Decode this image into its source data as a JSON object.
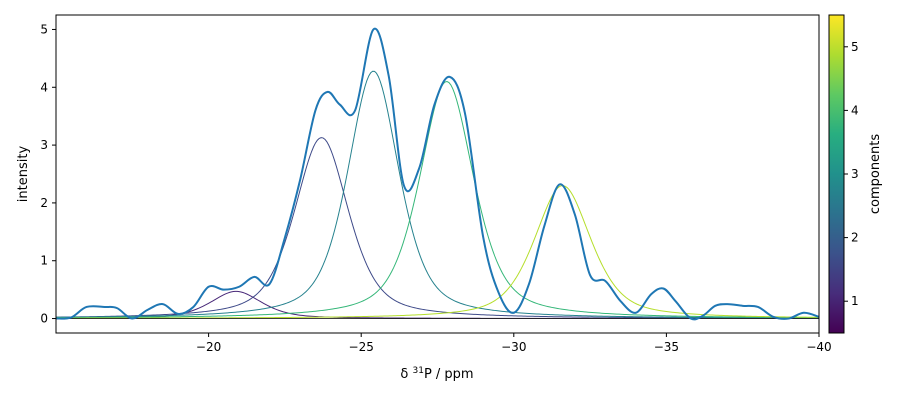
{
  "chart_data": {
    "type": "line",
    "xlabel_prefix": "δ ",
    "xlabel_sup": "31",
    "xlabel_suffix": "P / ppm",
    "ylabel": "intensity",
    "xlim": [
      -15,
      -40
    ],
    "ylim": [
      -0.25,
      5.25
    ],
    "x_ticks": [
      -20,
      -25,
      -30,
      -35,
      -40
    ],
    "x_tick_labels": [
      "−20",
      "−25",
      "−30",
      "−35",
      "−40"
    ],
    "y_ticks": [
      0,
      1,
      2,
      3,
      4,
      5
    ],
    "y_tick_labels": [
      "0",
      "1",
      "2",
      "3",
      "4",
      "5"
    ],
    "grid": false,
    "colorbar": {
      "label": "components",
      "range": [
        0.5,
        5.5
      ],
      "ticks": [
        1,
        2,
        3,
        4,
        5
      ],
      "tick_labels": [
        "1",
        "2",
        "3",
        "4",
        "5"
      ],
      "colormap": [
        "#440154",
        "#472d7b",
        "#3b528b",
        "#2c728e",
        "#21918c",
        "#28ae80",
        "#5ec962",
        "#addc30",
        "#fde725"
      ]
    },
    "components": [
      {
        "index": 1,
        "center": -20.9,
        "height": 0.47,
        "width": 1.0,
        "color": "#482878"
      },
      {
        "index": 2,
        "center": -23.7,
        "height": 3.13,
        "width": 1.05,
        "color": "#3e4a89"
      },
      {
        "index": 3,
        "center": -25.4,
        "height": 4.28,
        "width": 1.0,
        "color": "#26828e"
      },
      {
        "index": 4,
        "center": -27.8,
        "height": 4.1,
        "width": 1.05,
        "color": "#35b779"
      },
      {
        "index": 5,
        "center": -31.6,
        "height": 2.3,
        "width": 1.1,
        "color": "#b5de2b"
      }
    ],
    "measured_color": "#1f77b4",
    "measured": {
      "x": [
        -15.0,
        -15.5,
        -16.0,
        -16.6,
        -17.0,
        -17.5,
        -18.0,
        -18.5,
        -19.0,
        -19.5,
        -20.0,
        -20.5,
        -21.0,
        -21.5,
        -22.0,
        -22.5,
        -23.0,
        -23.5,
        -23.9,
        -24.3,
        -24.8,
        -25.4,
        -25.9,
        -26.4,
        -26.9,
        -27.4,
        -27.9,
        -28.4,
        -29.0,
        -29.5,
        -30.0,
        -30.5,
        -31.0,
        -31.5,
        -32.0,
        -32.5,
        -33.0,
        -33.5,
        -34.0,
        -34.5,
        -34.9,
        -35.3,
        -35.8,
        -36.2,
        -36.6,
        -37.0,
        -37.5,
        -38.0,
        -38.5,
        -39.0,
        -39.5,
        -40.0
      ],
      "y": [
        0.0,
        0.02,
        0.2,
        0.2,
        0.18,
        0.0,
        0.15,
        0.25,
        0.08,
        0.2,
        0.55,
        0.5,
        0.55,
        0.72,
        0.6,
        1.4,
        2.4,
        3.6,
        3.92,
        3.7,
        3.6,
        5.0,
        4.2,
        2.3,
        2.6,
        3.7,
        4.18,
        3.55,
        1.4,
        0.45,
        0.1,
        0.6,
        1.6,
        2.32,
        1.8,
        0.75,
        0.65,
        0.3,
        0.1,
        0.42,
        0.52,
        0.3,
        0.0,
        0.05,
        0.22,
        0.25,
        0.22,
        0.2,
        0.03,
        0.0,
        0.1,
        0.03
      ]
    }
  }
}
